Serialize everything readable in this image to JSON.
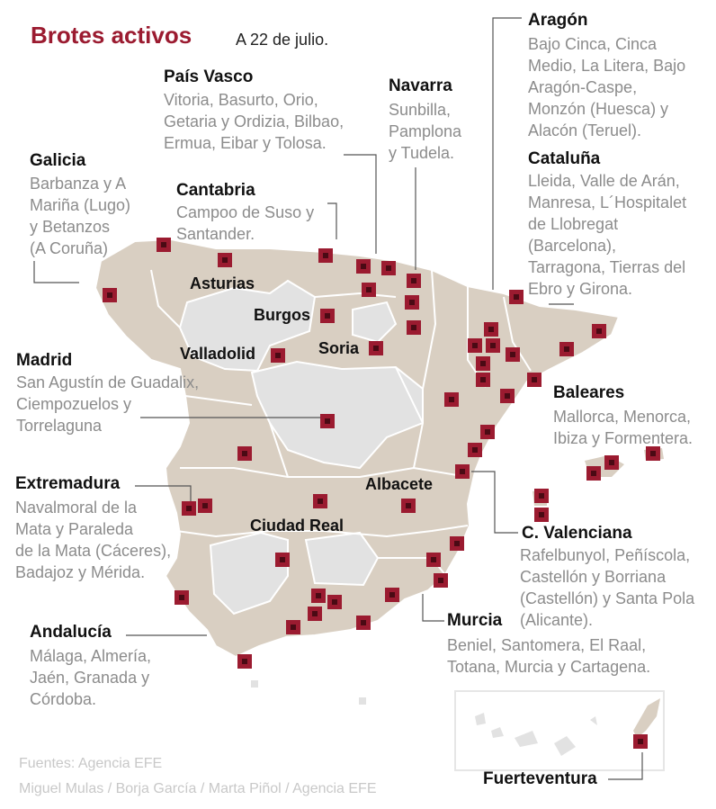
{
  "header": {
    "title": "Brotes activos",
    "subtitle": "A 22 de julio."
  },
  "regions": {
    "galicia": {
      "name": "Galicia",
      "places": "Barbanza y A\nMariña (Lugo)\ny Betanzos\n(A Coruña)"
    },
    "pais_vasco": {
      "name": "País Vasco",
      "places": "Vitoria, Basurto, Orio,\nGetaria y Ordizia, Bilbao,\nErmua, Eibar y Tolosa."
    },
    "navarra": {
      "name": "Navarra",
      "places": "Sunbilla,\nPamplona\ny Tudela."
    },
    "aragon": {
      "name": "Aragón",
      "places": "Bajo Cinca, Cinca\nMedio, La Litera, Bajo\nAragón-Caspe,\nMonzón (Huesca) y\nAlacón (Teruel)."
    },
    "cataluna": {
      "name": "Cataluña",
      "places": "Lleida, Valle de Arán,\nManresa, L´Hospitalet\nde Llobregat\n(Barcelona),\nTarragona, Tierras del\nEbro y Girona."
    },
    "cantabria": {
      "name": "Cantabria",
      "places": "Campoo de Suso y\nSantander."
    },
    "madrid": {
      "name": "Madrid",
      "places": "San Agustín de Guadalix,\nCiempozuelos y\nTorrelaguna"
    },
    "baleares": {
      "name": "Baleares",
      "places": "Mallorca, Menorca,\nIbiza y Formentera."
    },
    "extremadura": {
      "name": "Extremadura",
      "places": "Navalmoral de la\nMata y Paraleda\nde la Mata (Cáceres),\nBadajoz y Mérida."
    },
    "valenciana": {
      "name": "C. Valenciana",
      "places": "Rafelbunyol, Peñíscola,\nCastellón y Borriana\n(Castellón) y Santa Pola\n(Alicante)."
    },
    "andalucia": {
      "name": "Andalucía",
      "places": "Málaga, Almería,\nJaén, Granada y\nCórdoba."
    },
    "murcia": {
      "name": "Murcia",
      "places": "Beniel, Santomera, El Raal,\nTotana, Murcia y Cartagena."
    },
    "fuerteventura": {
      "name": "Fuerteventura"
    }
  },
  "map_labels": {
    "asturias": "Asturias",
    "burgos": "Burgos",
    "valladolid": "Valladolid",
    "soria": "Soria",
    "albacete": "Albacete",
    "ciudad_real": "Ciudad Real"
  },
  "sources": {
    "line1": "Fuentes: Agencia EFE",
    "line2": "Miguel Mulas / Borja García / Marta Piñol / Agencia EFE"
  },
  "colors": {
    "accent": "#9b1b30",
    "affected_province": "#d9cfc2",
    "unaffected_province": "#e2e2e2",
    "outbreak_marker": "#9b1b30"
  }
}
